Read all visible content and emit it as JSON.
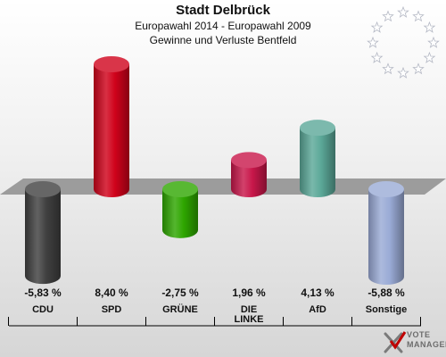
{
  "header": {
    "title": "Stadt Delbrück",
    "subtitle": "Europawahl 2014 - Europawahl 2009",
    "subtitle2": "Gewinne und Verluste Bentfeld"
  },
  "logo": {
    "line1": "VOTE",
    "line2": "MANAGER"
  },
  "chart_data": {
    "type": "bar",
    "title": "Stadt Delbrück",
    "subtitle": "Europawahl 2014 - Europawahl 2009 / Gewinne und Verluste Bentfeld",
    "categories": [
      "CDU",
      "SPD",
      "GRÜNE",
      "DIE LINKE",
      "AfD",
      "Sonstige"
    ],
    "values": [
      -5.83,
      8.4,
      -2.75,
      1.96,
      4.13,
      -5.88
    ],
    "value_labels": [
      "-5,83 %",
      "8,40 %",
      "-2,75 %",
      "1,96 %",
      "4,13 %",
      "-5,88 %"
    ],
    "category_labels": [
      [
        "CDU"
      ],
      [
        "SPD"
      ],
      [
        "GRÜNE"
      ],
      [
        "DIE",
        "LINKE"
      ],
      [
        "AfD"
      ],
      [
        "Sonstige"
      ]
    ],
    "colors": [
      "#404040",
      "#d0021b",
      "#2ea600",
      "#c8174a",
      "#5ba898",
      "#9aabd6"
    ],
    "baseline": 0,
    "grid": false,
    "legend": "none"
  }
}
